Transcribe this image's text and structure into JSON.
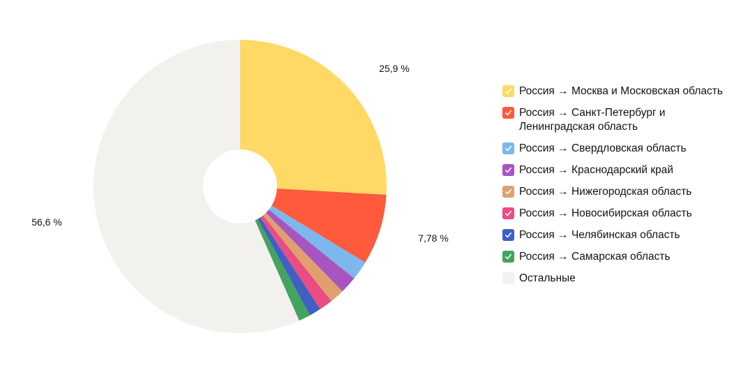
{
  "chart_data": {
    "type": "pie",
    "variant": "donut",
    "slices": [
      {
        "label": "Россия → Москва и Московская область",
        "value": 25.9,
        "color": "#FFD966",
        "value_label": "25,9 %"
      },
      {
        "label": "Россия → Санкт-Петербург и Ленинградская область",
        "value": 7.78,
        "color": "#FF5A3C",
        "value_label": "7,78 %"
      },
      {
        "label": "Россия → Свердловская область",
        "value": 2.1,
        "color": "#7CB8EC",
        "value_label": ""
      },
      {
        "label": "Россия → Краснодарский край",
        "value": 1.9,
        "color": "#A855C0",
        "value_label": ""
      },
      {
        "label": "Россия → Нижегородская область",
        "value": 1.6,
        "color": "#E0A06E",
        "value_label": ""
      },
      {
        "label": "Россия → Новосибирская область",
        "value": 1.5,
        "color": "#EA4C84",
        "value_label": ""
      },
      {
        "label": "Россия → Челябинская область",
        "value": 1.3,
        "color": "#3F5FC4",
        "value_label": ""
      },
      {
        "label": "Россия → Самарская область",
        "value": 1.3,
        "color": "#44A35E",
        "value_label": ""
      },
      {
        "label": "Остальные",
        "value": 56.6,
        "color": "#F2F1EE",
        "value_label": "56,6 %"
      }
    ]
  },
  "legend": {
    "items": [
      {
        "label": "Россия → Москва и Московская область",
        "color": "#FFD966",
        "checked": true,
        "icon": "check-icon"
      },
      {
        "label": "Россия → Санкт-Петербург и Ленинградская область",
        "color": "#FF5A3C",
        "checked": true,
        "icon": "check-icon"
      },
      {
        "label": "Россия → Свердловская область",
        "color": "#7CB8EC",
        "checked": true,
        "icon": "check-icon"
      },
      {
        "label": "Россия → Краснодарский край",
        "color": "#A855C0",
        "checked": true,
        "icon": "check-icon"
      },
      {
        "label": "Россия → Нижегородская область",
        "color": "#E0A06E",
        "checked": true,
        "icon": "check-icon"
      },
      {
        "label": "Россия → Новосибирская область",
        "color": "#EA4C84",
        "checked": true,
        "icon": "check-icon"
      },
      {
        "label": "Россия → Челябинская область",
        "color": "#3F5FC4",
        "checked": true,
        "icon": "check-icon"
      },
      {
        "label": "Россия → Самарская область",
        "color": "#44A35E",
        "checked": true,
        "icon": "check-icon"
      },
      {
        "label": "Остальные",
        "color": "#F2F1EE",
        "checked": false,
        "icon": ""
      }
    ]
  }
}
